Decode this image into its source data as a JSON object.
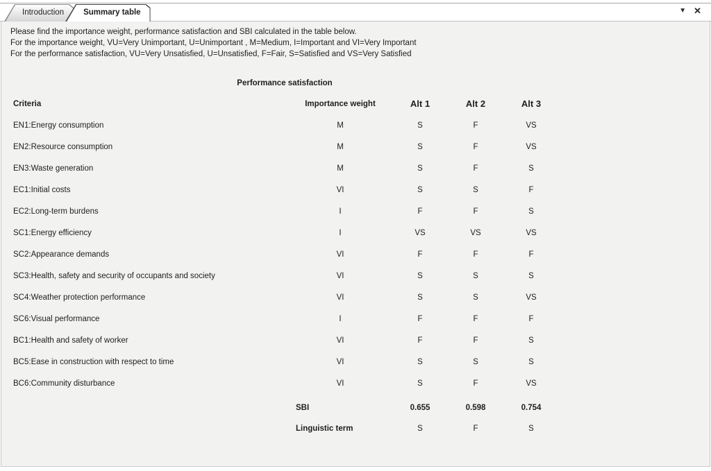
{
  "tab_bar": {
    "tabs": [
      {
        "label": "Introduction",
        "active": false
      },
      {
        "label": "Summary table",
        "active": true
      }
    ],
    "dropdown_icon": "▼",
    "close_icon": "✕"
  },
  "intro": {
    "lines": [
      "Please find the importance weight, performance satisfaction and SBI calculated in the table below.",
      "For the importance weight, VU=Very Unimportant, U=Unimportant , M=Medium, I=Important and VI=Very Important",
      "For the performance satisfaction, VU=Very Unsatisfied, U=Unsatisfied, F=Fair, S=Satisfied and VS=Very Satisfied"
    ]
  },
  "table": {
    "caption": "Performance satisfaction",
    "headers": {
      "criteria": "Criteria",
      "importance_weight": "Importance weight",
      "alt1": "Alt 1",
      "alt2": "Alt 2",
      "alt3": "Alt 3"
    },
    "rows": [
      {
        "criteria": "EN1:Energy consumption",
        "weight": "M",
        "alt1": "S",
        "alt2": "F",
        "alt3": "VS"
      },
      {
        "criteria": "EN2:Resource consumption",
        "weight": "M",
        "alt1": "S",
        "alt2": "F",
        "alt3": "VS"
      },
      {
        "criteria": "EN3:Waste generation",
        "weight": "M",
        "alt1": "S",
        "alt2": "F",
        "alt3": "S"
      },
      {
        "criteria": "EC1:Initial costs",
        "weight": "VI",
        "alt1": "S",
        "alt2": "S",
        "alt3": "F"
      },
      {
        "criteria": "EC2:Long-term burdens",
        "weight": "I",
        "alt1": "F",
        "alt2": "F",
        "alt3": "S"
      },
      {
        "criteria": "SC1:Energy efficiency",
        "weight": "I",
        "alt1": "VS",
        "alt2": "VS",
        "alt3": "VS"
      },
      {
        "criteria": "SC2:Appearance demands",
        "weight": "VI",
        "alt1": "F",
        "alt2": "F",
        "alt3": "F"
      },
      {
        "criteria": "SC3:Health, safety and security of occupants and society",
        "weight": "VI",
        "alt1": "S",
        "alt2": "S",
        "alt3": "S"
      },
      {
        "criteria": "SC4:Weather protection performance",
        "weight": "VI",
        "alt1": "S",
        "alt2": "S",
        "alt3": "VS"
      },
      {
        "criteria": "SC6:Visual performance",
        "weight": "I",
        "alt1": "F",
        "alt2": "F",
        "alt3": "F"
      },
      {
        "criteria": "BC1:Health and safety of worker",
        "weight": "VI",
        "alt1": "F",
        "alt2": "F",
        "alt3": "S"
      },
      {
        "criteria": "BC5:Ease in construction with respect to time",
        "weight": "VI",
        "alt1": "S",
        "alt2": "S",
        "alt3": "S"
      },
      {
        "criteria": "BC6:Community disturbance",
        "weight": "VI",
        "alt1": "S",
        "alt2": "F",
        "alt3": "VS"
      }
    ],
    "sbi_row": {
      "label": "SBI",
      "alt1": "0.655",
      "alt2": "0.598",
      "alt3": "0.754"
    },
    "linguistic_row": {
      "label": "Linguistic term",
      "alt1": "S",
      "alt2": "F",
      "alt3": "S"
    }
  },
  "colors": {
    "content_bg": "#f2f2f0",
    "text_color": "#1e1e1e",
    "active_tab_border": "#454545"
  }
}
